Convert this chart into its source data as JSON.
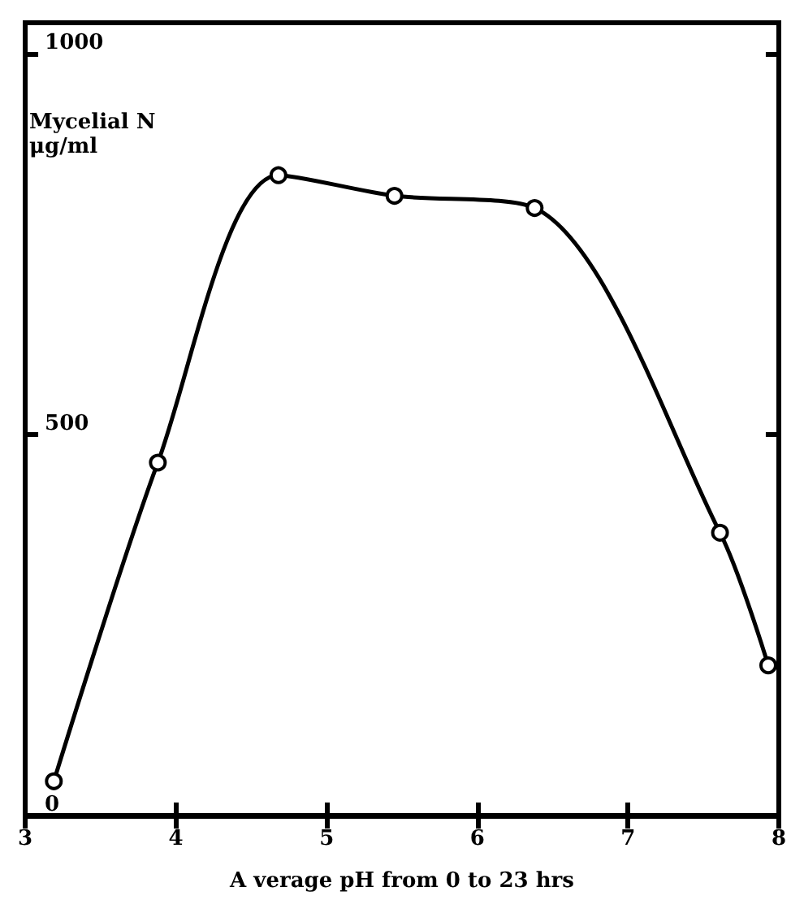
{
  "chart_data": {
    "type": "line",
    "xlabel": "A verage pH from 0 to 23 hrs",
    "ylabel": "Mycelial N\nμg/ml",
    "x": [
      3.19,
      3.88,
      4.68,
      5.45,
      6.38,
      7.61,
      7.93
    ],
    "values": [
      45,
      463,
      840,
      813,
      797,
      371,
      197
    ],
    "color": "#000000",
    "marker": "circle",
    "line_style": "solid",
    "xlim": [
      3,
      8
    ],
    "xticks": [
      3,
      4,
      5,
      6,
      7,
      8
    ],
    "ylim": [
      0,
      1040
    ],
    "yticks": [
      0,
      500,
      1000
    ],
    "grid": false
  }
}
